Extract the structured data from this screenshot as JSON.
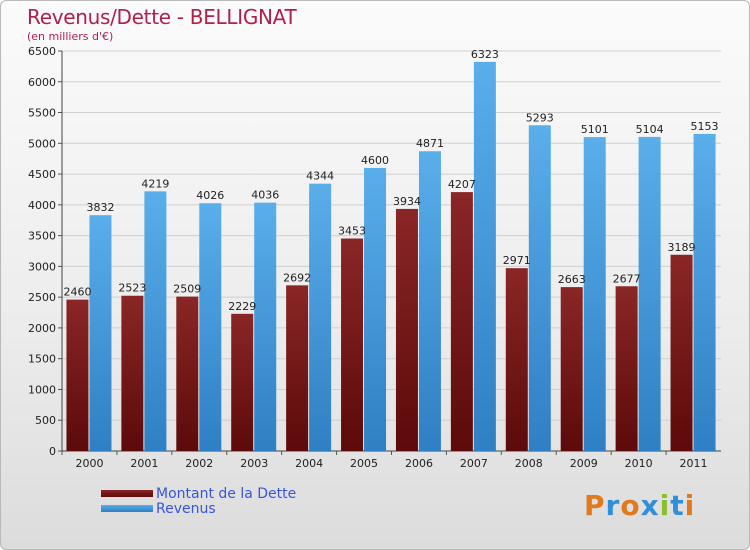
{
  "title": "Revenus/Dette - BELLIGNAT",
  "subtitle": "(en milliers d'€)",
  "colors": {
    "dette": "#7a1818",
    "revenus": "#4da3e6",
    "title": "#b0204a",
    "legend_text": "#3a55d8"
  },
  "legend": [
    "Montant de la Dette",
    "Revenus"
  ],
  "logo": {
    "text": "Proxiti",
    "letters": [
      {
        "ch": "P",
        "color": "#e07a1c"
      },
      {
        "ch": "r",
        "color": "#2f8fd8"
      },
      {
        "ch": "o",
        "color": "#e07a1c"
      },
      {
        "ch": "x",
        "color": "#2f8fd8"
      },
      {
        "ch": "i",
        "color": "#8cbf2a"
      },
      {
        "ch": "t",
        "color": "#2f8fd8"
      },
      {
        "ch": "i",
        "color": "#e07a1c"
      }
    ]
  },
  "chart_data": {
    "type": "bar",
    "categories": [
      "2000",
      "2001",
      "2002",
      "2003",
      "2004",
      "2005",
      "2006",
      "2007",
      "2008",
      "2009",
      "2010",
      "2011"
    ],
    "series": [
      {
        "name": "Montant de la Dette",
        "values": [
          2460,
          2523,
          2509,
          2229,
          2692,
          3453,
          3934,
          4207,
          2971,
          2663,
          2677,
          3189
        ]
      },
      {
        "name": "Revenus",
        "values": [
          3832,
          4219,
          4026,
          4036,
          4344,
          4600,
          4871,
          6323,
          5293,
          5101,
          5104,
          5153
        ]
      }
    ],
    "ylim": [
      0,
      6500
    ],
    "yticks": [
      0,
      500,
      1000,
      1500,
      2000,
      2500,
      3000,
      3500,
      4000,
      4500,
      5000,
      5500,
      6000,
      6500
    ],
    "grid": true
  }
}
